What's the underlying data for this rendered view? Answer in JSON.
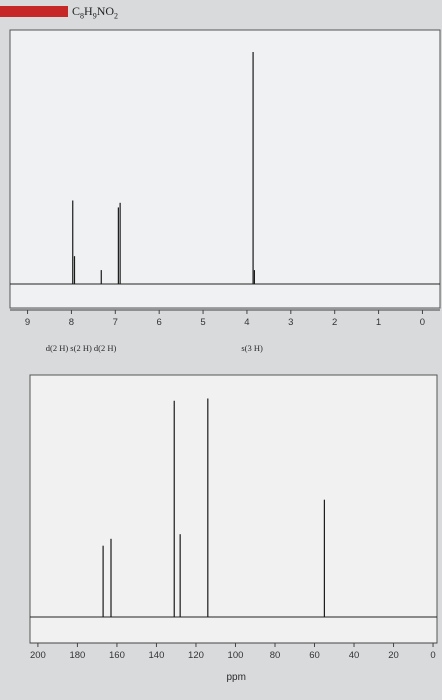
{
  "header": {
    "formula": "C8H9NO2"
  },
  "chart_data": [
    {
      "type": "line",
      "title": "",
      "xlabel": "",
      "xlim": [
        9.4,
        -0.4
      ],
      "x_ticks": [
        9,
        8,
        7,
        6,
        5,
        4,
        3,
        2,
        1,
        0
      ],
      "peaks": [
        {
          "x": 7.97,
          "height": 0.36
        },
        {
          "x": 7.93,
          "height": 0.12
        },
        {
          "x": 7.32,
          "height": 0.06
        },
        {
          "x": 6.93,
          "height": 0.33
        },
        {
          "x": 6.89,
          "height": 0.35
        },
        {
          "x": 3.86,
          "height": 1.0
        },
        {
          "x": 3.83,
          "height": 0.06
        }
      ],
      "annotations": [
        {
          "text": "d(2 H) s(2 H) d(2 H)",
          "x": 7.4
        },
        {
          "text": "s(3 H)",
          "x": 3.9
        }
      ]
    },
    {
      "type": "line",
      "title": "",
      "xlabel": "ppm",
      "xlim": [
        204,
        -2
      ],
      "x_ticks": [
        200,
        180,
        160,
        140,
        120,
        100,
        80,
        60,
        40,
        20,
        0
      ],
      "peaks": [
        {
          "x": 167,
          "height": 0.31
        },
        {
          "x": 163,
          "height": 0.34
        },
        {
          "x": 131,
          "height": 0.94
        },
        {
          "x": 128,
          "height": 0.36
        },
        {
          "x": 114,
          "height": 0.95
        },
        {
          "x": 55,
          "height": 0.51
        }
      ]
    }
  ]
}
